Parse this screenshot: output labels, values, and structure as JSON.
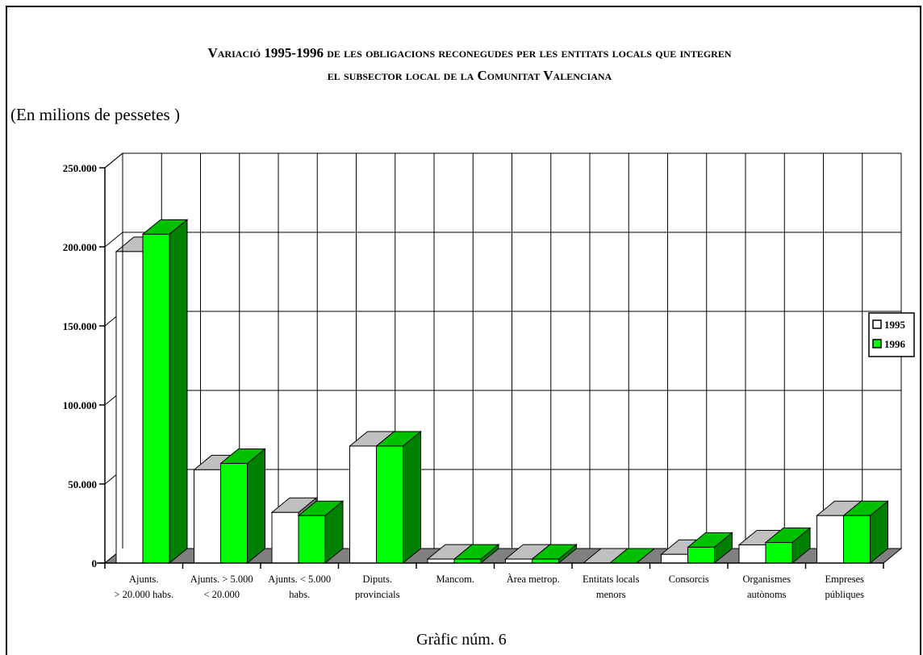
{
  "chart_data": {
    "type": "bar",
    "title_line1": "Variació 1995-1996 de les obligacions reconegudes per les entitats locals que integren",
    "title_line2": "el subsector local de la Comunitat Valenciana",
    "subtitle": "(En milions de pessetes )",
    "footer": "Gràfic núm. 6",
    "categories": [
      [
        "Ajunts.",
        "> 20.000 habs."
      ],
      [
        "Ajunts.  > 5.000",
        "< 20.000"
      ],
      [
        "Ajunts.  < 5.000",
        "habs."
      ],
      [
        "Diputs.",
        "provincials"
      ],
      [
        "Mancom."
      ],
      [
        "Àrea metrop."
      ],
      [
        "Entitats  locals",
        "menors"
      ],
      [
        "Consorcis"
      ],
      [
        "Organismes",
        "autònoms"
      ],
      [
        "Empreses",
        "públiques"
      ]
    ],
    "series": [
      {
        "name": "1995",
        "values": [
          197000,
          59000,
          32000,
          74000,
          2500,
          2500,
          0,
          5500,
          11500,
          30000
        ]
      },
      {
        "name": "1996",
        "values": [
          208000,
          63000,
          30000,
          74000,
          2500,
          2500,
          0,
          10000,
          13000,
          30000
        ]
      }
    ],
    "yticks": [
      "250.000",
      "200.000",
      "150.000",
      "100.000",
      "50.000",
      "0"
    ],
    "ylim": [
      0,
      250000
    ],
    "legend_position": "right",
    "grid": true,
    "colors": {
      "s1995_front": "#ffffff",
      "s1995_top": "#c0c0c0",
      "s1995_side": "#808080",
      "s1996_front": "#00ff00",
      "s1996_top": "#00c000",
      "s1996_side": "#008000",
      "floor": "#808080"
    }
  }
}
